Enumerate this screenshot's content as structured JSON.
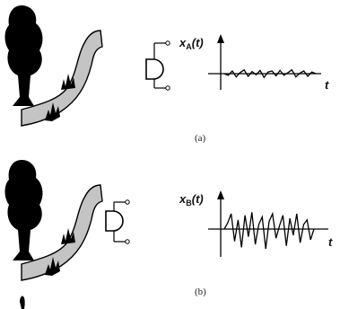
{
  "panels": [
    {
      "id": "a",
      "caption": "(a)",
      "signal_label": {
        "var": "x",
        "sub": "A",
        "arg": "(t)"
      },
      "time_label": "t",
      "signal": [
        0,
        -0.3,
        0.5,
        -0.6,
        0.2,
        0.7,
        -0.5,
        0.4,
        -0.2,
        0.6,
        -0.7,
        0.3,
        0.5,
        -0.4,
        0.6,
        -0.3,
        0.2,
        0.7,
        -0.6,
        0.1,
        0.5,
        -0.5,
        0.3,
        0
      ]
    },
    {
      "id": "b",
      "caption": "(b)",
      "signal_label": {
        "var": "x",
        "sub": "B",
        "arg": "(t)"
      },
      "time_label": "t",
      "signal": [
        0,
        0.4,
        1.0,
        -0.8,
        0.6,
        -1.2,
        0.9,
        -0.5,
        1.1,
        -1.0,
        0.3,
        0.8,
        -1.3,
        0.5,
        1.0,
        -0.6,
        0.2,
        0.9,
        -1.1,
        0.7,
        -0.4,
        1.0,
        -0.9,
        0.3,
        0.6,
        -0.7,
        0
      ]
    }
  ],
  "colors": {
    "ink": "#000000",
    "river": "#c4c4c4",
    "axis": "#000000"
  },
  "icons": [
    "tree-icon",
    "river-icon",
    "microphone-icon"
  ]
}
